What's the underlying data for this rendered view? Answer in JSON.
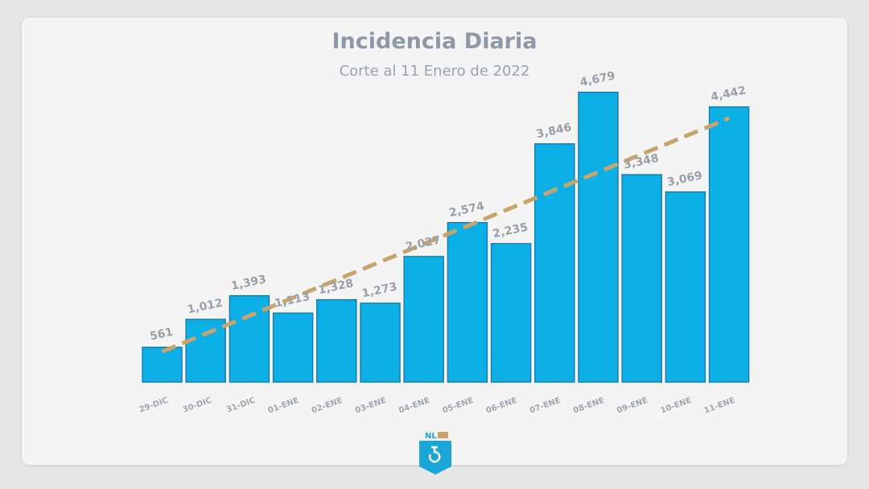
{
  "chart_data": {
    "type": "bar",
    "title": "Incidencia Diaria",
    "subtitle": "Corte al 11 Enero de 2022",
    "categories": [
      "29-DIC",
      "30-DIC",
      "31-DIC",
      "01-ENE",
      "02-ENE",
      "03-ENE",
      "04-ENE",
      "05-ENE",
      "06-ENE",
      "07-ENE",
      "08-ENE",
      "09-ENE",
      "10-ENE",
      "11-ENE"
    ],
    "values": [
      561,
      1012,
      1393,
      1113,
      1328,
      1273,
      2027,
      2574,
      2235,
      3846,
      4679,
      3348,
      3069,
      4442
    ],
    "data_labels": [
      "561",
      "1,012",
      "1,393",
      "1,113",
      "1,328",
      "1,273",
      "2,027",
      "2,574",
      "2,235",
      "3,846",
      "4,679",
      "3,348",
      "3,069",
      "4,442"
    ],
    "trendline": {
      "type": "linear",
      "style": "dashed",
      "start_value": 490,
      "end_value": 4260
    },
    "ylim": [
      0,
      5000
    ],
    "grid": false,
    "colors": {
      "bar": "#0db0e6",
      "bar_border": "#1a7fae",
      "trendline": "#c9a46a",
      "label": "#9aa0a8"
    }
  },
  "logo": {
    "text": "NL"
  }
}
